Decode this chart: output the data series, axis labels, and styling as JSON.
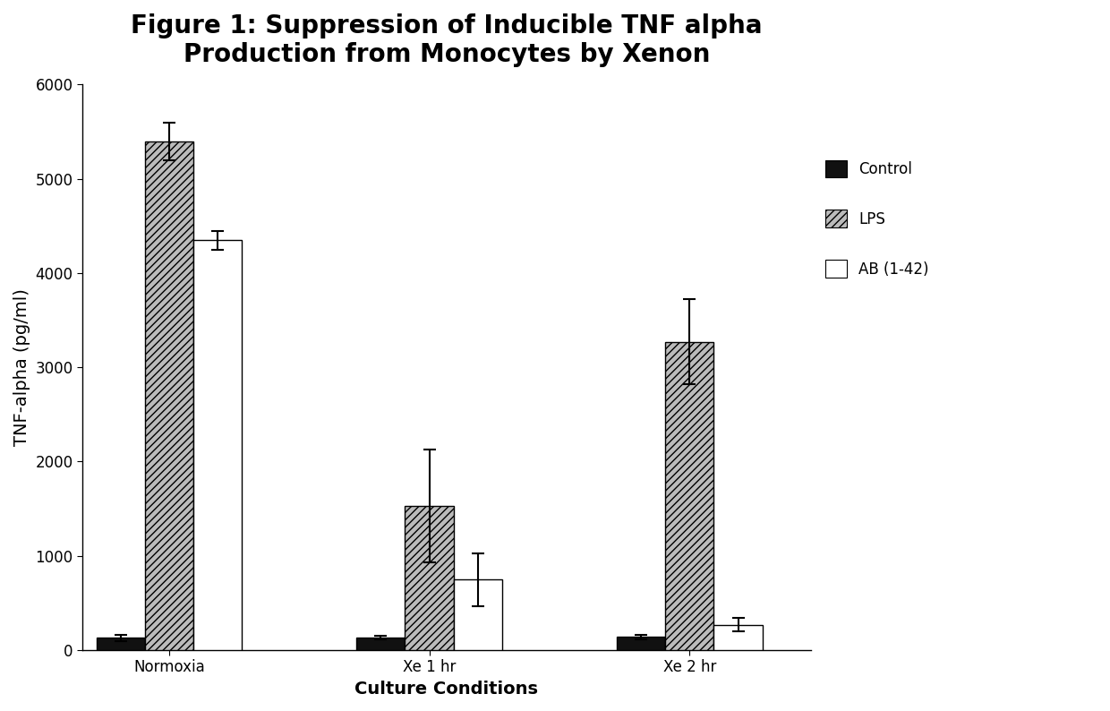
{
  "title": "Figure 1: Suppression of Inducible TNF alpha\nProduction from Monocytes by Xenon",
  "xlabel": "Culture Conditions",
  "ylabel": "TNF-alpha (pg/ml)",
  "categories": [
    "Normoxia",
    "Xe 1 hr",
    "Xe 2 hr"
  ],
  "series": {
    "Control": {
      "values": [
        130,
        130,
        140
      ],
      "errors": [
        30,
        20,
        25
      ],
      "color": "#111111",
      "hatch": ""
    },
    "LPS": {
      "values": [
        5400,
        1530,
        3270
      ],
      "errors": [
        200,
        600,
        450
      ],
      "color": "#bbbbbb",
      "hatch": "////"
    },
    "AB (1-42)": {
      "values": [
        4350,
        750,
        270
      ],
      "errors": [
        100,
        280,
        70
      ],
      "color": "#ffffff",
      "hatch": ""
    }
  },
  "ylim": [
    0,
    6000
  ],
  "yticks": [
    0,
    1000,
    2000,
    3000,
    4000,
    5000,
    6000
  ],
  "legend_labels": [
    "Control",
    "LPS",
    "AB (1-42)"
  ],
  "background_color": "#ffffff",
  "title_fontsize": 20,
  "axis_label_fontsize": 14,
  "tick_fontsize": 12,
  "legend_fontsize": 12,
  "bar_width": 0.28,
  "group_positions": [
    0.5,
    2.0,
    3.5
  ]
}
